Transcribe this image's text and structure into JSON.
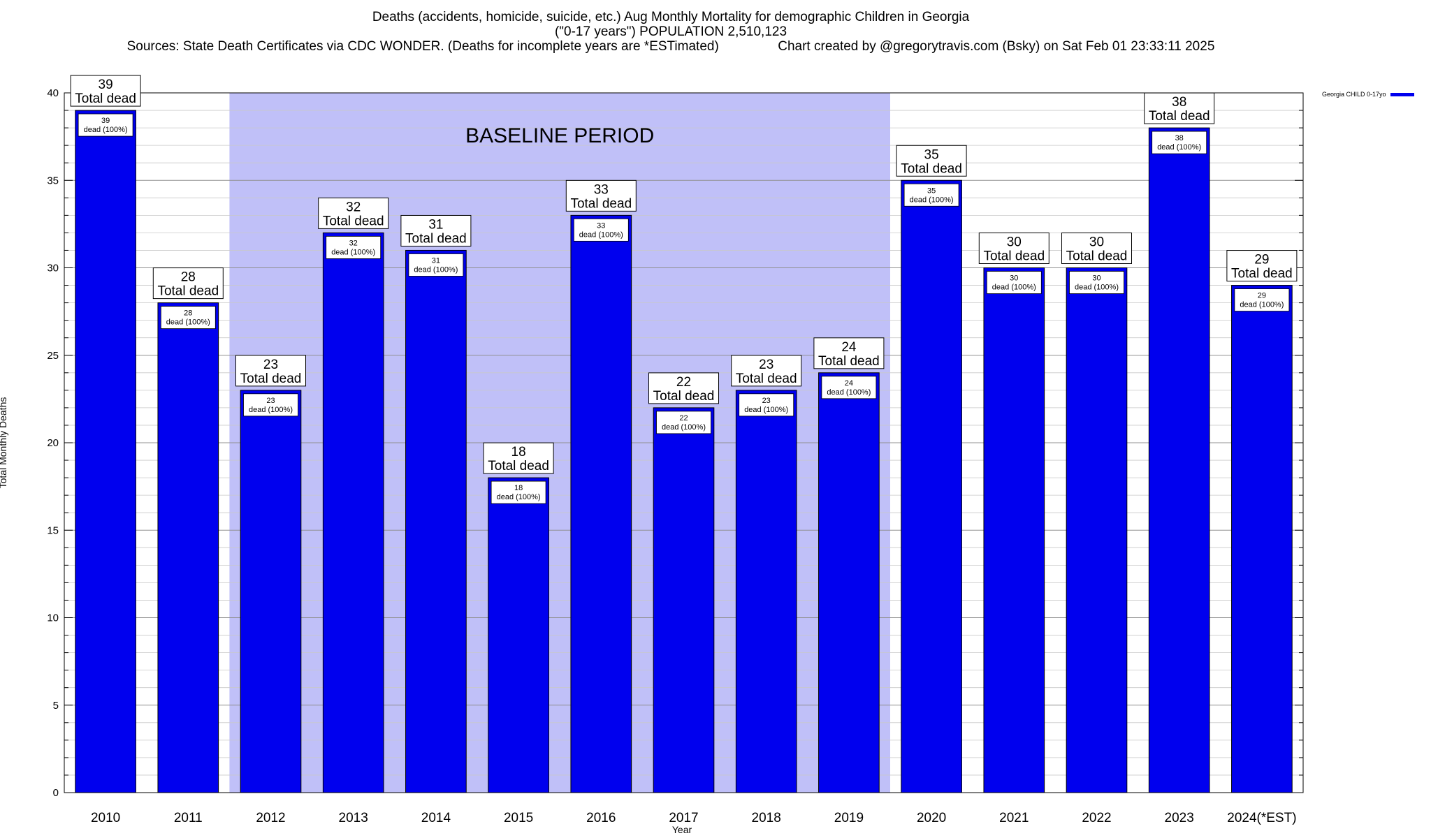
{
  "header": {
    "title_line1": "Deaths (accidents, homicide, suicide, etc.) Aug Monthly Mortality for demographic Children in Georgia",
    "title_line2": "(\"0-17 years\") POPULATION 2,510,123",
    "title_line3": "Sources: State Death Certificates via CDC WONDER. (Deaths for incomplete years are *ESTimated)                Chart created by @gregorytravis.com (Bsky) on Sat Feb 01 23:33:11 2025"
  },
  "chart_data": {
    "type": "bar",
    "title": "Deaths (accidents, homicide, suicide, etc.) Aug Monthly Mortality for demographic Children in Georgia",
    "xlabel": "Year",
    "ylabel": "Total Monthly Deaths",
    "ylim": [
      0,
      40
    ],
    "yticks": [
      0,
      5,
      10,
      15,
      20,
      25,
      30,
      35,
      40
    ],
    "grid": true,
    "legend_position": "top-right",
    "categories": [
      "2010",
      "2011",
      "2012",
      "2013",
      "2014",
      "2015",
      "2016",
      "2017",
      "2018",
      "2019",
      "2020",
      "2021",
      "2022",
      "2023",
      "2024(*EST)"
    ],
    "series": [
      {
        "name": "Georgia CHILD 0-17yo",
        "color": "#0000ee",
        "values": [
          39,
          28,
          23,
          32,
          31,
          18,
          33,
          22,
          23,
          24,
          35,
          30,
          30,
          38,
          29
        ]
      }
    ],
    "top_label_suffix": "Total dead",
    "inner_label_suffix": "dead (100%)",
    "baseline_period": {
      "label": "BASELINE PERIOD",
      "from": "2012",
      "to": "2019",
      "color": "#c0c0f8"
    }
  }
}
